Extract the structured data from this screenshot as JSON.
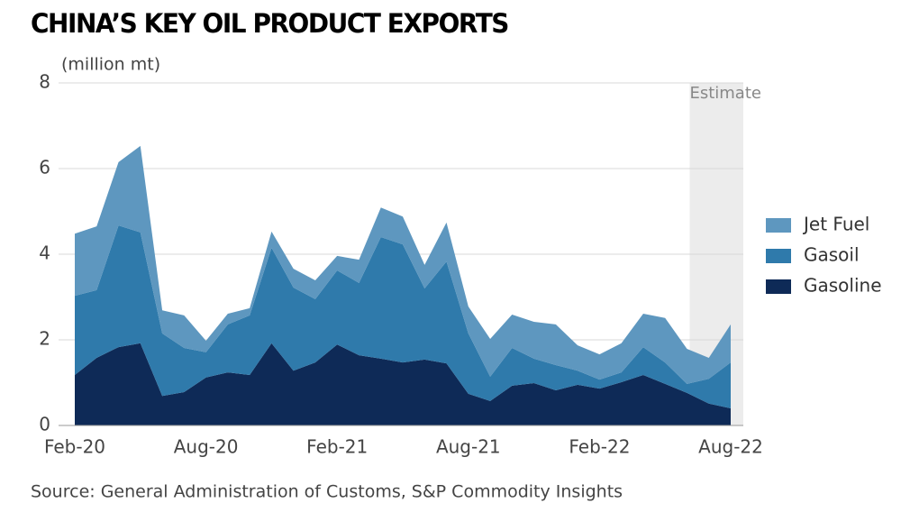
{
  "chart_data": {
    "type": "stacked_area",
    "title": "CHINA’S KEY OIL PRODUCT EXPORTS",
    "y_label": "(million mt)",
    "source": "Source: General Administration of Customs, S&P Commodity Insights",
    "categories": [
      "Feb-20",
      null,
      null,
      null,
      null,
      null,
      "Aug-20",
      null,
      null,
      null,
      null,
      null,
      "Feb-21",
      null,
      null,
      null,
      null,
      null,
      "Aug-21",
      null,
      null,
      null,
      null,
      null,
      "Feb-22",
      null,
      null,
      null,
      null,
      null,
      "Aug-22"
    ],
    "series": [
      {
        "name": "Gasoline",
        "color": "#0e2a57",
        "values": [
          1.18,
          1.58,
          1.83,
          1.92,
          0.69,
          0.78,
          1.12,
          1.24,
          1.18,
          1.92,
          1.28,
          1.47,
          1.89,
          1.64,
          1.56,
          1.47,
          1.54,
          1.45,
          0.74,
          0.57,
          0.93,
          0.99,
          0.82,
          0.95,
          0.86,
          1.01,
          1.18,
          0.97,
          0.76,
          0.51,
          0.4
        ]
      },
      {
        "name": "Gasoil",
        "color": "#2f7aab",
        "values": [
          1.85,
          1.58,
          2.84,
          2.59,
          1.46,
          1.03,
          0.59,
          1.12,
          1.39,
          2.23,
          1.94,
          1.48,
          1.73,
          1.69,
          2.84,
          2.76,
          1.66,
          2.38,
          1.41,
          0.57,
          0.88,
          0.57,
          0.59,
          0.33,
          0.21,
          0.23,
          0.65,
          0.5,
          0.21,
          0.58,
          1.07
        ]
      },
      {
        "name": "Jet Fuel",
        "color": "#5e97bf",
        "values": [
          1.45,
          1.49,
          1.48,
          2.02,
          0.54,
          0.76,
          0.27,
          0.25,
          0.17,
          0.38,
          0.44,
          0.44,
          0.34,
          0.54,
          0.69,
          0.65,
          0.55,
          0.91,
          0.63,
          0.88,
          0.78,
          0.86,
          0.95,
          0.59,
          0.59,
          0.68,
          0.78,
          1.04,
          0.82,
          0.49,
          0.89
        ]
      }
    ],
    "ylim": [
      0,
      8
    ],
    "yticks": [
      0,
      2,
      4,
      6,
      8
    ],
    "grid": true,
    "shade": {
      "label": "Estimate",
      "start": 28,
      "color": "#ececec"
    },
    "legend": "right"
  }
}
